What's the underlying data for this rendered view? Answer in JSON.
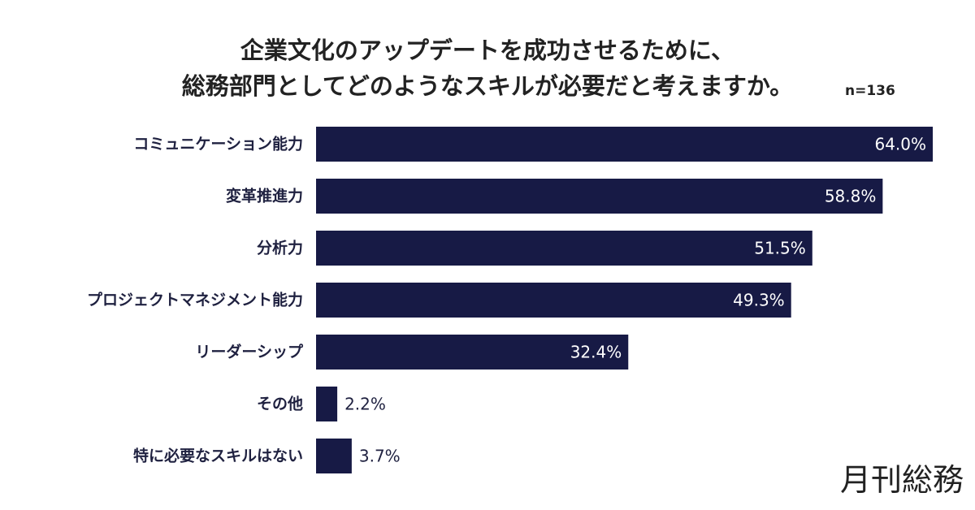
{
  "title": {
    "line1": "企業文化のアップデートを成功させるために、",
    "line2": "総務部門としてどのようなスキルが必要だと考えますか。"
  },
  "sample_size": "n=136",
  "logo_text": "月刊総務",
  "colors": {
    "bar": "#171a45",
    "label": "#1f2140",
    "inside_label": "#ffffff"
  },
  "chart_data": {
    "type": "bar",
    "orientation": "horizontal",
    "categories": [
      "コミュニケーション能力",
      "変革推進力",
      "分析力",
      "プロジェクトマネジメント能力",
      "リーダーシップ",
      "その他",
      "特に必要なスキルはない"
    ],
    "values": [
      64.0,
      58.8,
      51.5,
      49.3,
      32.4,
      2.2,
      3.7
    ],
    "value_labels": [
      "64.0%",
      "58.8%",
      "51.5%",
      "49.3%",
      "32.4%",
      "2.2%",
      "3.7%"
    ],
    "unit": "%",
    "grid": false,
    "legend": "none"
  }
}
